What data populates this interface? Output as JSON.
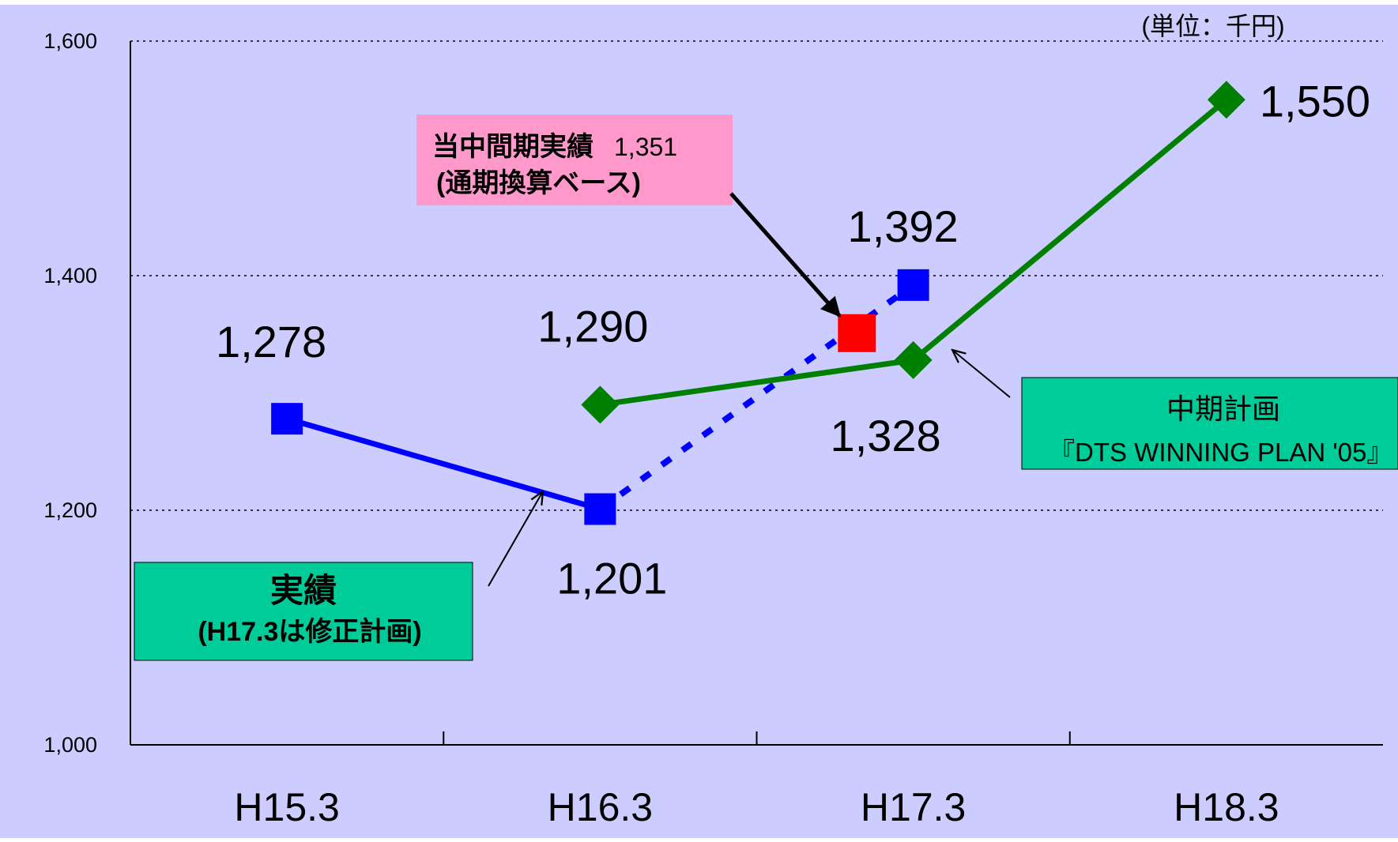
{
  "chart_data": {
    "type": "line",
    "unit_note": "(単位：千円)",
    "categories": [
      "H15.3",
      "H16.3",
      "H17.3",
      "H18.3"
    ],
    "ylim": [
      1000,
      1600
    ],
    "yticks": [
      1000,
      1200,
      1400,
      1600
    ],
    "ytick_labels": [
      "1,000",
      "1,200",
      "1,400",
      "1,600"
    ],
    "grid": "dotted horizontal at 1,200 and 1,400",
    "series": [
      {
        "name": "実績(H17.3は修正計画)",
        "color": "#0000ff",
        "marker": "square",
        "points": [
          {
            "x": "H15.3",
            "y": 1278,
            "label": "1,278"
          },
          {
            "x": "H16.3",
            "y": 1201,
            "label": "1,201"
          },
          {
            "x": "H17.3",
            "y": 1392,
            "label": "1,392"
          }
        ],
        "segment_styles": [
          "solid",
          "dashed"
        ]
      },
      {
        "name": "中期計画「DTS WINNING PLAN '05」",
        "color": "#008000",
        "marker": "diamond",
        "points": [
          {
            "x": "H16.3",
            "y": 1290,
            "label": "1,290"
          },
          {
            "x": "H17.3",
            "y": 1328,
            "label": "1,328"
          },
          {
            "x": "H18.3",
            "y": 1550,
            "label": "1,550"
          }
        ]
      }
    ],
    "highlight_point": {
      "x_between": [
        "H16.3",
        "H17.3"
      ],
      "x_fraction": 0.82,
      "y": 1351,
      "color": "#ff0000",
      "marker": "square"
    },
    "annotations": [
      {
        "id": "interim",
        "lines": [
          "当中間期実績",
          "1,351",
          "(通期換算ベース)"
        ],
        "bg": "#ff99cc"
      },
      {
        "id": "actual",
        "lines": [
          "実績",
          "(H17.3は修正計画)"
        ],
        "bg": "#00cc99"
      },
      {
        "id": "plan",
        "lines": [
          "中期計画",
          "『DTS WINNING PLAN '05』"
        ],
        "bg": "#00cc99"
      }
    ]
  },
  "colors": {
    "plot_background": "#ccccff",
    "axis": "#000000"
  }
}
